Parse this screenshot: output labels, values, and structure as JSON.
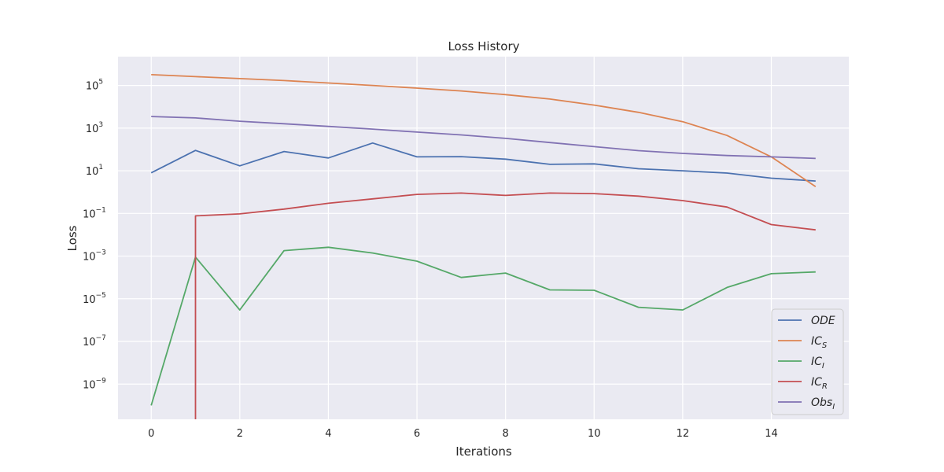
{
  "chart_data": {
    "type": "line",
    "title": "Loss History",
    "xlabel": "Iterations",
    "ylabel": "Loss",
    "yscale": "log",
    "xlim": [
      -0.75,
      15.75
    ],
    "ylim_log10": [
      -10.65,
      6.35
    ],
    "x_ticks": [
      0,
      2,
      4,
      6,
      8,
      10,
      12,
      14
    ],
    "y_ticks": [
      {
        "base": "10",
        "exp": "5",
        "value": 100000
      },
      {
        "base": "10",
        "exp": "3",
        "value": 1000
      },
      {
        "base": "10",
        "exp": "1",
        "value": 10
      },
      {
        "base": "10",
        "exp": "−1",
        "value": 0.1
      },
      {
        "base": "10",
        "exp": "−3",
        "value": 0.001
      },
      {
        "base": "10",
        "exp": "−5",
        "value": 1e-05
      },
      {
        "base": "10",
        "exp": "−7",
        "value": 1e-07
      },
      {
        "base": "10",
        "exp": "−9",
        "value": 1e-09
      }
    ],
    "grid": true,
    "legend_position": "lower-right",
    "x": [
      0,
      1,
      2,
      3,
      4,
      5,
      6,
      7,
      8,
      9,
      10,
      11,
      12,
      13,
      14,
      15
    ],
    "series": [
      {
        "name": "ODE",
        "label_main": "ODE",
        "label_sub": "",
        "color": "#4c72b0",
        "values": [
          8,
          90,
          17,
          80,
          40,
          200,
          45,
          46,
          35,
          20,
          21,
          12.5,
          10,
          7.8,
          4.5,
          3.3
        ]
      },
      {
        "name": "IC_S",
        "label_main": "IC",
        "label_sub": "S",
        "color": "#dd8452",
        "values": [
          320000,
          260000,
          210000,
          170000,
          130000,
          100000,
          75000,
          55000,
          37000,
          23000,
          12000,
          5500,
          2000,
          450,
          45,
          1.8
        ]
      },
      {
        "name": "IC_I",
        "label_main": "IC",
        "label_sub": "I",
        "color": "#55a868",
        "values": [
          1e-10,
          0.0009,
          3e-06,
          0.0018,
          0.0026,
          0.0014,
          0.00058,
          0.0001,
          0.00016,
          2.6e-05,
          2.5e-05,
          4e-06,
          3e-06,
          3.4e-05,
          0.00015,
          0.00018
        ]
      },
      {
        "name": "IC_R",
        "label_main": "IC",
        "label_sub": "R",
        "color": "#c44e52",
        "values": [
          null,
          0.077,
          0.095,
          0.16,
          0.3,
          0.48,
          0.78,
          0.9,
          0.7,
          0.9,
          0.85,
          0.65,
          0.4,
          0.2,
          0.03,
          0.017
        ],
        "drop_at_x": 1
      },
      {
        "name": "Obs_I",
        "label_main": "Obs",
        "label_sub": "I",
        "color": "#8172b3",
        "values": [
          3500,
          3000,
          2100,
          1600,
          1200,
          900,
          650,
          480,
          330,
          210,
          135,
          88,
          65,
          52,
          45,
          38
        ]
      }
    ]
  }
}
